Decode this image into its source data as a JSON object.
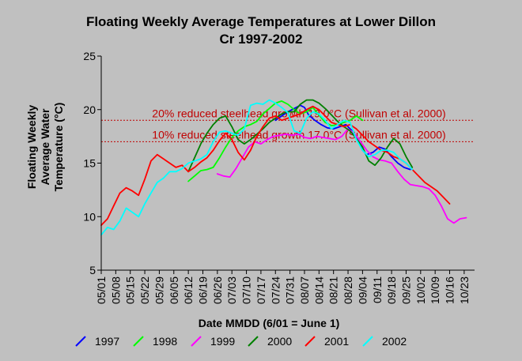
{
  "chart_data": {
    "type": "line",
    "title_line1": "Floating Weekly Average Temperatures at Lower Dillon",
    "title_line2": "Cr 1997-2002",
    "xlabel": "Date MMDD (6/01 = June 1)",
    "ylabel_lines": [
      "Floating Weekly",
      "Average Water",
      "Temperature (°C)"
    ],
    "ylim": [
      5,
      25
    ],
    "yticks": [
      5,
      10,
      15,
      20,
      25
    ],
    "xlim": [
      0,
      180
    ],
    "x_tick_labels": [
      "05/01",
      "05/08",
      "05/15",
      "05/22",
      "05/29",
      "06/05",
      "06/12",
      "06/19",
      "06/26",
      "07/03",
      "07/10",
      "07/17",
      "07/24",
      "07/31",
      "08/07",
      "08/14",
      "08/21",
      "08/28",
      "09/04",
      "09/11",
      "09/18",
      "09/25",
      "10/02",
      "10/09",
      "10/16",
      "10/23"
    ],
    "reference_lines": [
      {
        "value": 19,
        "label": "20% reduced steelhead growth 19.0°C (Sullivan et al. 2000)"
      },
      {
        "value": 17,
        "label": "10% reduced steelhead growth 17.0°C (Sullivan et al. 2000)"
      }
    ],
    "series": [
      {
        "name": "1997",
        "color": "#0000ff",
        "x": [
          84,
          87,
          90,
          93,
          96,
          98,
          100,
          103,
          106,
          109,
          112,
          115,
          118,
          121,
          124,
          126,
          128,
          131,
          134,
          137,
          140,
          143,
          146,
          149
        ],
        "y": [
          19.0,
          19.4,
          19.8,
          20.1,
          20.4,
          20.2,
          19.5,
          19.0,
          18.6,
          18.3,
          18.2,
          18.4,
          18.6,
          18.0,
          17.0,
          16.2,
          15.8,
          16.0,
          16.5,
          16.3,
          15.6,
          15.0,
          14.6,
          14.4
        ]
      },
      {
        "name": "1998",
        "color": "#00ff00",
        "x": [
          42,
          45,
          48,
          51,
          54,
          57,
          60,
          63,
          66,
          69,
          72,
          75,
          78,
          81,
          84,
          87,
          90,
          93,
          96,
          99,
          102,
          105,
          108,
          111,
          114,
          117,
          120,
          123,
          126
        ],
        "y": [
          13.3,
          13.8,
          14.3,
          14.4,
          14.6,
          15.5,
          16.5,
          17.4,
          18.0,
          18.4,
          18.6,
          18.9,
          19.6,
          20.1,
          20.6,
          20.8,
          20.5,
          20.0,
          19.6,
          19.8,
          20.2,
          19.5,
          18.8,
          18.5,
          18.6,
          18.8,
          19.0,
          19.4,
          19.0
        ]
      },
      {
        "name": "1999",
        "color": "#ff00ff",
        "x": [
          56,
          59,
          62,
          65,
          68,
          71,
          74,
          77,
          80,
          83,
          86,
          89,
          92,
          95,
          98,
          101,
          104,
          107,
          110,
          113,
          116,
          119,
          122,
          125,
          128,
          131,
          134,
          137,
          140,
          143,
          146,
          149,
          152,
          155,
          158,
          161,
          164,
          167,
          170,
          173,
          176
        ],
        "y": [
          14.0,
          13.8,
          13.7,
          14.5,
          15.5,
          16.5,
          17.0,
          16.8,
          17.2,
          17.5,
          17.6,
          17.7,
          17.6,
          17.7,
          17.4,
          17.3,
          17.5,
          17.4,
          17.3,
          17.2,
          17.5,
          18.2,
          17.8,
          17.0,
          16.2,
          15.6,
          15.3,
          15.2,
          15.0,
          14.2,
          13.5,
          13.0,
          12.9,
          12.8,
          12.6,
          12.0,
          11.0,
          9.8,
          9.4,
          9.8,
          9.9
        ]
      },
      {
        "name": "2000",
        "color": "#008000",
        "x": [
          42,
          45,
          48,
          51,
          54,
          57,
          60,
          63,
          66,
          69,
          72,
          75,
          78,
          81,
          84,
          87,
          90,
          93,
          96,
          99,
          102,
          105,
          108,
          111,
          114,
          117,
          120,
          123,
          126,
          129,
          132,
          135,
          138,
          141,
          144,
          147,
          150
        ],
        "y": [
          14.2,
          15.5,
          16.8,
          17.8,
          18.6,
          19.2,
          19.4,
          18.4,
          17.2,
          16.8,
          17.2,
          17.7,
          18.2,
          18.8,
          19.2,
          19.6,
          19.8,
          19.8,
          20.5,
          20.9,
          20.9,
          20.6,
          20.1,
          19.5,
          18.9,
          18.4,
          18.0,
          17.3,
          16.5,
          15.2,
          14.8,
          15.5,
          16.5,
          17.3,
          16.8,
          15.6,
          14.6
        ]
      },
      {
        "name": "2001",
        "color": "#ff0000",
        "x": [
          0,
          3,
          6,
          9,
          12,
          15,
          18,
          21,
          24,
          27,
          30,
          33,
          36,
          39,
          42,
          45,
          48,
          51,
          54,
          57,
          60,
          63,
          66,
          69,
          72,
          75,
          78,
          81,
          84,
          87,
          90,
          93,
          96,
          99,
          102,
          105,
          108,
          111,
          114,
          117,
          120,
          123,
          126,
          129,
          132,
          135,
          138,
          141,
          144,
          147,
          150,
          153,
          156,
          159,
          162,
          165,
          168
        ],
        "y": [
          9.2,
          9.8,
          11.0,
          12.2,
          12.7,
          12.4,
          12.0,
          13.5,
          15.2,
          15.8,
          15.4,
          15.0,
          14.6,
          14.8,
          14.2,
          14.6,
          15.1,
          15.5,
          16.2,
          17.1,
          17.8,
          17.2,
          16.0,
          15.3,
          16.2,
          17.5,
          18.4,
          19.2,
          19.4,
          19.0,
          19.2,
          19.4,
          19.6,
          20.0,
          20.3,
          20.0,
          19.4,
          18.8,
          18.6,
          18.4,
          18.6,
          18.2,
          17.6,
          17.0,
          16.6,
          16.2,
          16.0,
          15.6,
          15.4,
          15.0,
          14.4,
          13.8,
          13.2,
          12.8,
          12.4,
          11.8,
          11.2
        ]
      },
      {
        "name": "2002",
        "color": "#00ffff",
        "x": [
          0,
          3,
          6,
          9,
          12,
          15,
          18,
          21,
          24,
          27,
          30,
          33,
          36,
          39,
          42,
          45,
          48,
          51,
          54,
          57,
          60,
          63,
          66,
          69,
          72,
          75,
          78,
          81,
          84,
          87,
          90,
          93,
          96,
          99,
          102,
          105,
          108,
          111,
          114,
          117,
          120,
          123,
          126,
          129,
          132,
          135,
          138,
          141,
          144,
          147,
          150
        ],
        "y": [
          8.3,
          9.0,
          8.8,
          9.6,
          10.8,
          10.4,
          10.0,
          11.2,
          12.2,
          13.2,
          13.6,
          14.2,
          14.2,
          14.5,
          15.0,
          15.2,
          15.4,
          15.8,
          17.0,
          17.9,
          18.0,
          17.8,
          17.6,
          18.2,
          20.4,
          20.6,
          20.5,
          20.9,
          20.6,
          20.2,
          19.7,
          18.0,
          17.8,
          19.2,
          19.8,
          19.6,
          19.0,
          18.2,
          18.6,
          19.0,
          18.8,
          17.2,
          16.2,
          15.6,
          15.8,
          16.2,
          16.2,
          16.0,
          15.4,
          15.0,
          14.4
        ]
      }
    ]
  }
}
